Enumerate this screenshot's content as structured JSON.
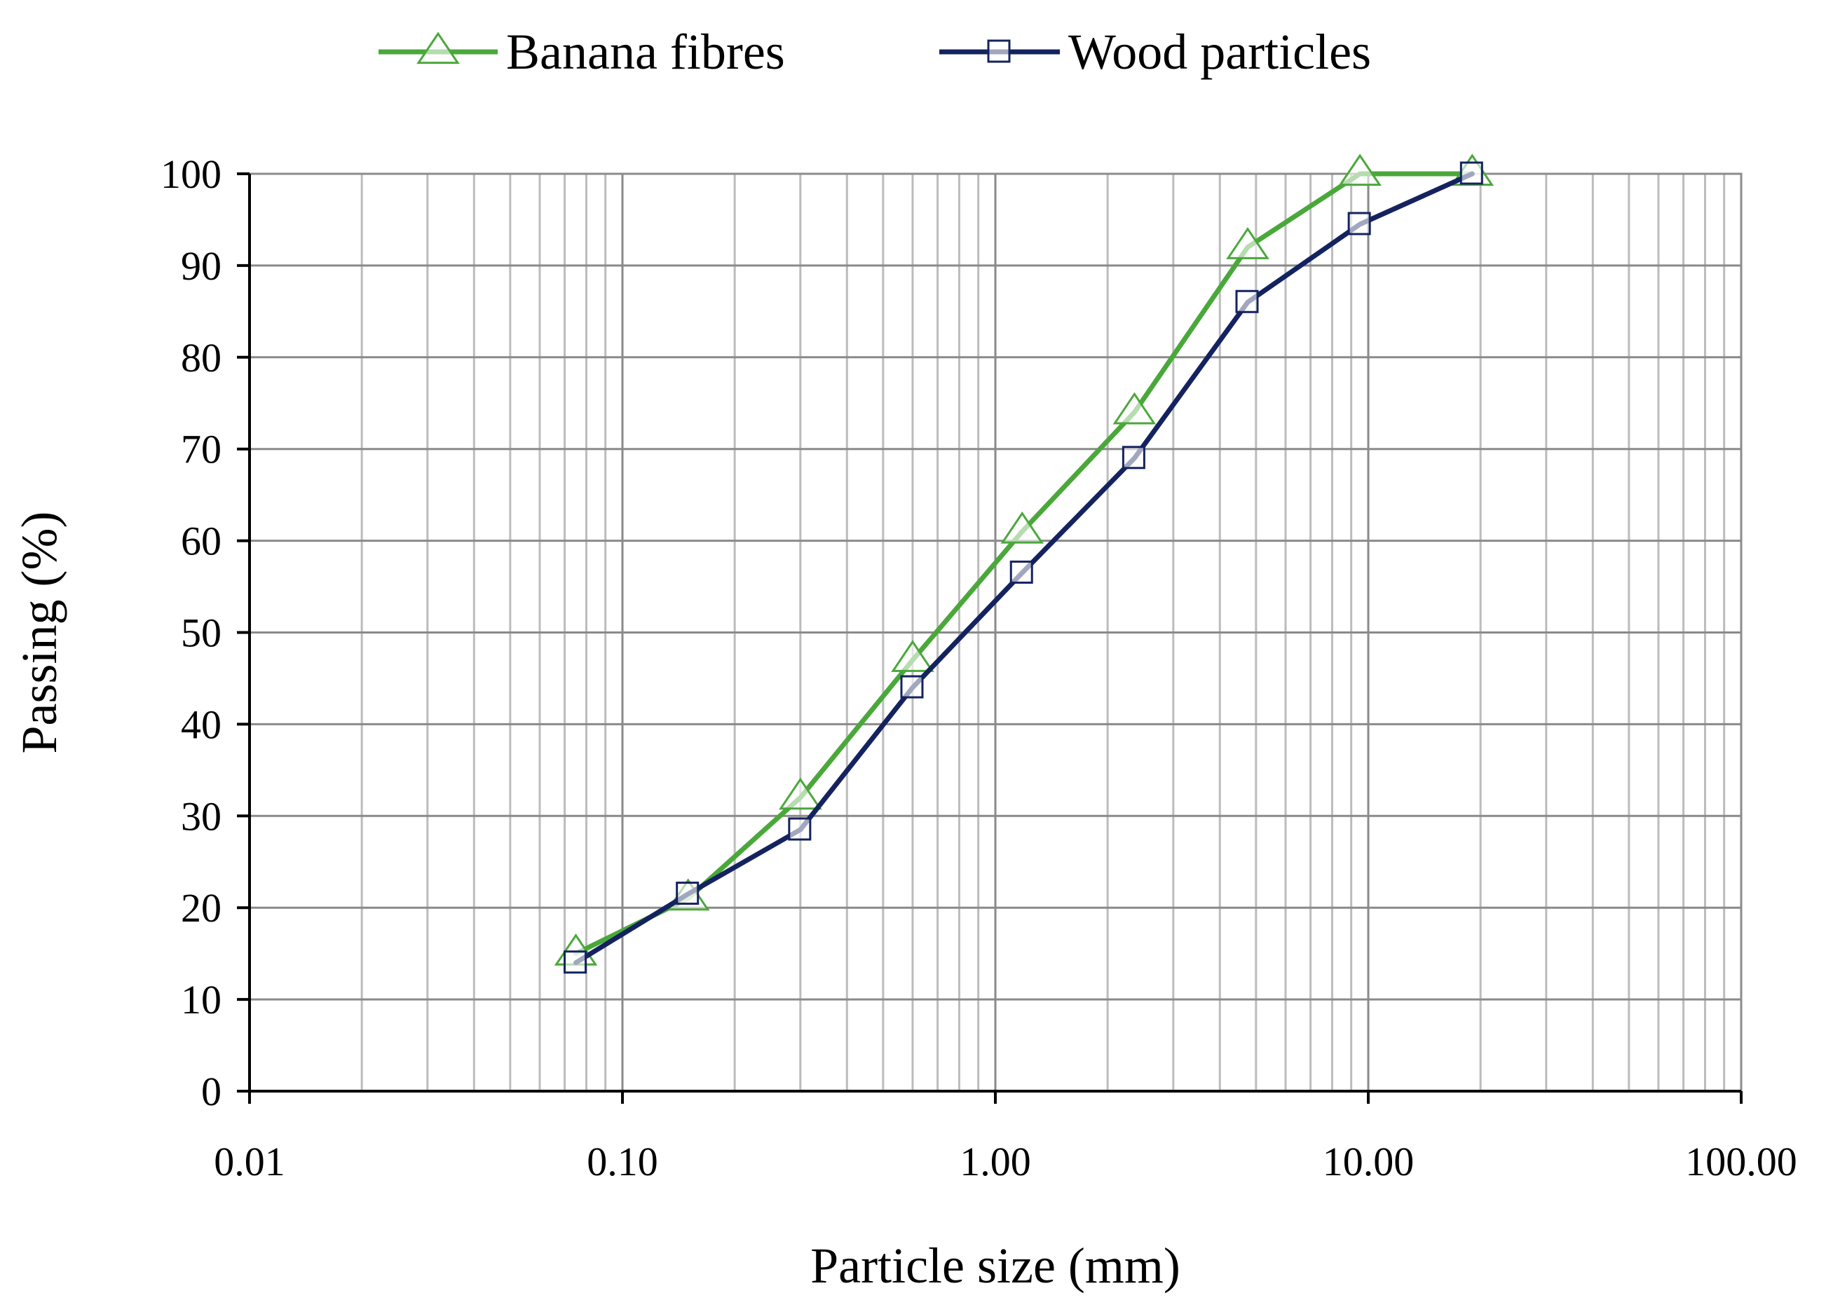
{
  "chart_data": {
    "type": "line",
    "x_scale": "log",
    "title": "",
    "xlabel": "Particle size (mm)",
    "ylabel": "Passing (%)",
    "xlim": [
      0.01,
      100
    ],
    "ylim": [
      0,
      100
    ],
    "x_ticks": [
      0.01,
      0.1,
      1,
      10,
      100
    ],
    "x_tick_labels": [
      "0.01",
      "0.10",
      "1.00",
      "10.00",
      "100.00"
    ],
    "y_ticks": [
      0,
      10,
      20,
      30,
      40,
      50,
      60,
      70,
      80,
      90,
      100
    ],
    "y_tick_labels": [
      "0",
      "10",
      "20",
      "30",
      "40",
      "50",
      "60",
      "70",
      "80",
      "90",
      "100"
    ],
    "grid": true,
    "legend_position": "top-center",
    "series": [
      {
        "name": "Banana fibres",
        "color": "#4aa83a",
        "marker": "triangle",
        "x": [
          0.075,
          0.15,
          0.3,
          0.6,
          1.18,
          2.36,
          4.75,
          9.5,
          19
        ],
        "y": [
          15,
          21,
          32,
          47,
          61,
          74,
          92,
          100,
          100
        ]
      },
      {
        "name": "Wood particles",
        "color": "#14235f",
        "marker": "square",
        "x": [
          0.075,
          0.15,
          0.3,
          0.6,
          1.18,
          2.36,
          4.75,
          9.5,
          19
        ],
        "y": [
          14,
          21.5,
          28.5,
          44,
          56.5,
          69,
          86,
          94.5,
          100
        ]
      }
    ]
  }
}
